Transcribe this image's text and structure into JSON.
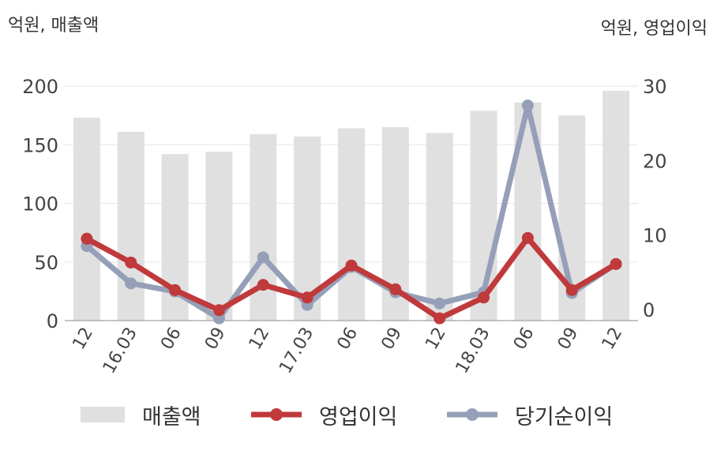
{
  "units": {
    "left": "억원, 매출액",
    "right": "억원, 영업이익"
  },
  "chart_data": {
    "type": "bar+line",
    "categories": [
      "12",
      "16.03",
      "06",
      "09",
      "12",
      "17.03",
      "06",
      "09",
      "12",
      "18.03",
      "06",
      "09",
      "12"
    ],
    "left_axis": {
      "ylim": [
        0,
        200
      ],
      "ticks": [
        0,
        50,
        100,
        150,
        200
      ]
    },
    "right_axis": {
      "ylim": [
        -1.5,
        30
      ],
      "ticks": [
        0,
        10,
        20,
        30
      ]
    },
    "grid": true,
    "legend_position": "bottom",
    "series": [
      {
        "name": "매출액",
        "type": "bar",
        "axis": "left",
        "color": "#e0e0e0",
        "values": [
          173,
          161,
          142,
          144,
          159,
          157,
          164,
          165,
          160,
          179,
          186,
          175,
          196
        ]
      },
      {
        "name": "영업이익",
        "type": "line",
        "axis": "right",
        "color": "#c0393b",
        "values": [
          9.5,
          6.3,
          2.6,
          -0.1,
          3.3,
          1.6,
          5.9,
          2.7,
          -1.2,
          1.6,
          9.6,
          2.6,
          6.1
        ]
      },
      {
        "name": "당기순이익",
        "type": "line",
        "axis": "right",
        "color": "#95a0b8",
        "values": [
          8.5,
          3.5,
          2.4,
          -1.2,
          7.0,
          0.6,
          5.7,
          2.3,
          0.8,
          2.3,
          27.4,
          2.2,
          6.1
        ]
      }
    ]
  }
}
